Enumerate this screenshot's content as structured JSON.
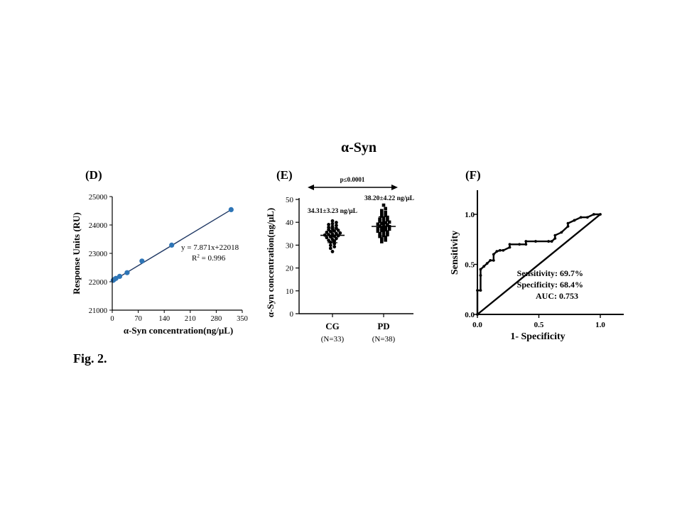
{
  "figure": {
    "title": "α-Syn",
    "caption": "Fig. 2."
  },
  "chart_data": [
    {
      "panel": "(D)",
      "type": "scatter",
      "xlabel": "α-Syn concentration(ng/μL)",
      "ylabel": "Response Units (RU)",
      "xlim": [
        0,
        350
      ],
      "ylim": [
        21000,
        25000
      ],
      "xticks": [
        0,
        70,
        140,
        210,
        280,
        350
      ],
      "yticks": [
        21000,
        22000,
        23000,
        24000,
        25000
      ],
      "points": {
        "x": [
          2.5,
          5,
          10,
          20,
          40,
          80,
          160,
          320
        ],
        "y": [
          22050,
          22080,
          22120,
          22190,
          22320,
          22730,
          23290,
          24540
        ]
      },
      "fit": {
        "slope": 7.871,
        "intercept": 22018
      },
      "equation": "y = 7.871x+22018",
      "r2_prefix": "R",
      "r2_sup": "2",
      "r2_value": " = 0.996",
      "color": "#2e75b6"
    },
    {
      "panel": "(E)",
      "type": "scatter",
      "ylabel": "α-Syn concentration(ng/μL)",
      "ylim": [
        0,
        50
      ],
      "yticks": [
        0,
        10,
        20,
        30,
        40,
        50
      ],
      "significance": "p≤0.0001",
      "groups": [
        {
          "name": "CG",
          "n_label": "(N=33)",
          "summary": "34.31±3.23 ng/μL",
          "mean": 34.31,
          "sd": 3.23,
          "values": [
            27.2,
            28.6,
            29.3,
            29.9,
            30.6,
            31.2,
            31.8,
            32.1,
            32.5,
            32.9,
            33.3,
            33.6,
            33.9,
            34.1,
            34.4,
            34.6,
            34.8,
            35.1,
            35.3,
            35.6,
            35.9,
            36.2,
            36.5,
            36.8,
            37.1,
            37.4,
            37.8,
            38.2,
            38.6,
            39.0,
            39.4,
            39.9,
            40.6
          ]
        },
        {
          "name": "PD",
          "n_label": "(N=38)",
          "summary": "38.20±4.22 ng/μL",
          "mean": 38.2,
          "sd": 4.22,
          "values": [
            31.5,
            32.2,
            32.8,
            33.3,
            33.8,
            34.2,
            34.6,
            35.0,
            35.4,
            35.8,
            36.1,
            36.4,
            36.7,
            37.0,
            37.3,
            37.6,
            37.9,
            38.1,
            38.3,
            38.6,
            38.9,
            39.2,
            39.5,
            39.8,
            40.1,
            40.4,
            40.7,
            41.0,
            41.4,
            41.8,
            42.2,
            42.7,
            43.2,
            43.8,
            44.4,
            45.1,
            46.0,
            47.5
          ]
        }
      ]
    },
    {
      "panel": "(F)",
      "type": "line",
      "xlabel": "1- Specificity",
      "ylabel": "Sensitivity",
      "xlim": [
        0,
        1
      ],
      "ylim": [
        0,
        1
      ],
      "xticks": [
        "0.0",
        "0.5",
        "1.0"
      ],
      "yticks": [
        "0.0",
        "0.5",
        "1.0"
      ],
      "roc": {
        "x": [
          0,
          0,
          0.026,
          0.026,
          0.026,
          0.053,
          0.079,
          0.105,
          0.132,
          0.132,
          0.158,
          0.184,
          0.21,
          0.263,
          0.263,
          0.342,
          0.395,
          0.395,
          0.474,
          0.579,
          0.605,
          0.632,
          0.632,
          0.684,
          0.737,
          0.737,
          0.789,
          0.842,
          0.895,
          0.947,
          1.0
        ],
        "y": [
          0,
          0.24,
          0.24,
          0.39,
          0.45,
          0.48,
          0.51,
          0.54,
          0.54,
          0.6,
          0.63,
          0.64,
          0.64,
          0.67,
          0.7,
          0.7,
          0.7,
          0.73,
          0.73,
          0.73,
          0.73,
          0.76,
          0.79,
          0.82,
          0.88,
          0.91,
          0.94,
          0.97,
          0.97,
          1.0,
          1.0
        ]
      },
      "reference": {
        "x": [
          0,
          1
        ],
        "y": [
          0,
          1
        ]
      },
      "annotations": [
        "Sensitivity:  69.7%",
        "Specificity:  68.4%",
        "AUC: 0.753"
      ]
    }
  ]
}
